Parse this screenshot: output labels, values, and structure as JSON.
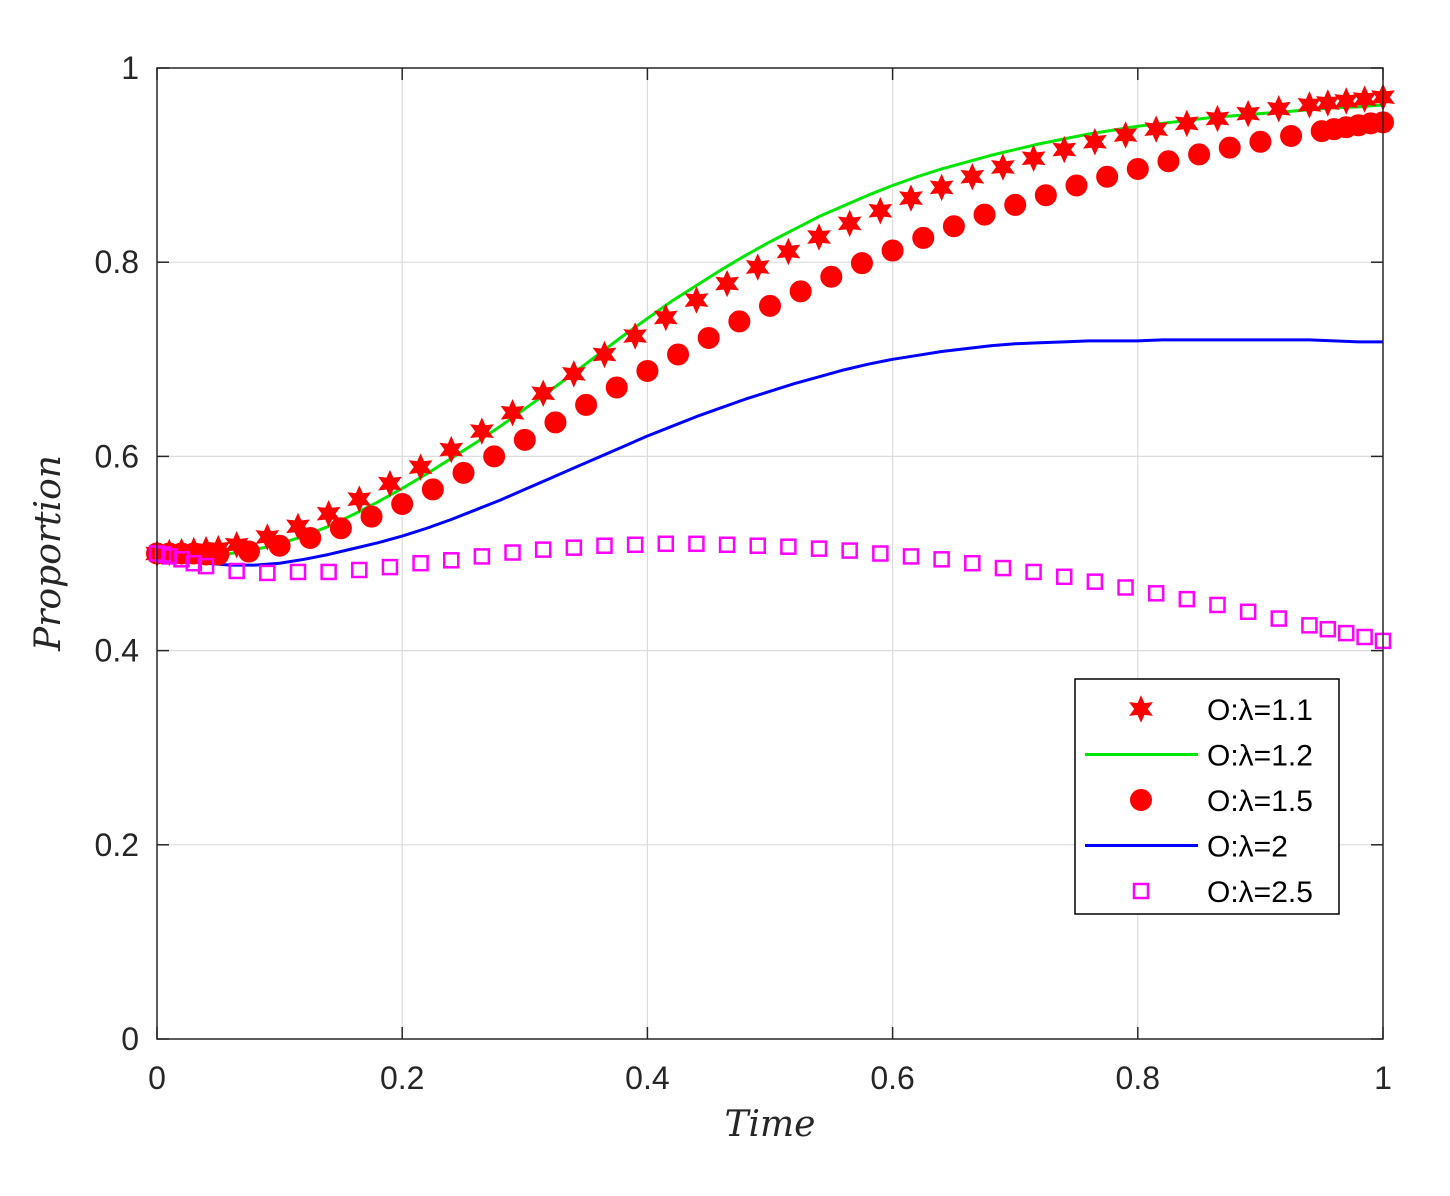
{
  "chart_data": {
    "type": "line",
    "title": "",
    "xlabel": "Time",
    "ylabel": "Proportion",
    "xlim": [
      0,
      1
    ],
    "ylim": [
      0,
      1
    ],
    "grid": true,
    "x_ticks": [
      0,
      0.2,
      0.4,
      0.6,
      0.8,
      1
    ],
    "x_tick_labels": [
      "0",
      "0.2",
      "0.4",
      "0.6",
      "0.8",
      "1"
    ],
    "y_ticks": [
      0,
      0.2,
      0.4,
      0.6,
      0.8,
      1
    ],
    "y_tick_labels": [
      "0",
      "0.2",
      "0.4",
      "0.6",
      "0.8",
      "1"
    ],
    "legend_position": "center-right",
    "series": [
      {
        "name": "O:λ=1.1",
        "color": "#ff0000",
        "style": "markers",
        "marker": "hexagram",
        "x": [
          0,
          0.01,
          0.02,
          0.03,
          0.04,
          0.05,
          0.065,
          0.09,
          0.115,
          0.14,
          0.165,
          0.19,
          0.215,
          0.24,
          0.265,
          0.29,
          0.315,
          0.34,
          0.365,
          0.39,
          0.415,
          0.44,
          0.465,
          0.49,
          0.515,
          0.54,
          0.565,
          0.59,
          0.615,
          0.64,
          0.665,
          0.69,
          0.715,
          0.74,
          0.765,
          0.79,
          0.815,
          0.84,
          0.865,
          0.89,
          0.915,
          0.94,
          0.955,
          0.97,
          0.985,
          1.0
        ],
        "y": [
          0.5,
          0.501,
          0.502,
          0.503,
          0.504,
          0.505,
          0.509,
          0.517,
          0.528,
          0.541,
          0.556,
          0.572,
          0.589,
          0.607,
          0.626,
          0.645,
          0.665,
          0.685,
          0.705,
          0.724,
          0.743,
          0.761,
          0.778,
          0.795,
          0.811,
          0.826,
          0.84,
          0.853,
          0.866,
          0.877,
          0.888,
          0.898,
          0.907,
          0.916,
          0.924,
          0.931,
          0.937,
          0.943,
          0.948,
          0.953,
          0.958,
          0.962,
          0.964,
          0.966,
          0.968,
          0.97
        ]
      },
      {
        "name": "O:λ=1.2",
        "color": "#00e600",
        "style": "line",
        "x": [
          0,
          0.02,
          0.04,
          0.06,
          0.08,
          0.1,
          0.12,
          0.14,
          0.16,
          0.18,
          0.2,
          0.22,
          0.24,
          0.26,
          0.28,
          0.3,
          0.32,
          0.34,
          0.36,
          0.38,
          0.4,
          0.42,
          0.44,
          0.46,
          0.48,
          0.5,
          0.52,
          0.54,
          0.56,
          0.58,
          0.6,
          0.62,
          0.64,
          0.66,
          0.68,
          0.7,
          0.72,
          0.74,
          0.76,
          0.78,
          0.8,
          0.82,
          0.84,
          0.86,
          0.88,
          0.9,
          0.92,
          0.94,
          0.96,
          0.98,
          1.0
        ],
        "y": [
          0.5,
          0.499,
          0.499,
          0.5,
          0.504,
          0.51,
          0.518,
          0.528,
          0.54,
          0.553,
          0.567,
          0.582,
          0.598,
          0.614,
          0.631,
          0.649,
          0.667,
          0.686,
          0.705,
          0.724,
          0.742,
          0.76,
          0.776,
          0.792,
          0.807,
          0.821,
          0.834,
          0.847,
          0.858,
          0.869,
          0.879,
          0.888,
          0.896,
          0.903,
          0.91,
          0.916,
          0.922,
          0.927,
          0.932,
          0.936,
          0.94,
          0.943,
          0.946,
          0.949,
          0.951,
          0.953,
          0.955,
          0.957,
          0.959,
          0.96,
          0.962
        ]
      },
      {
        "name": "O:λ=1.5",
        "color": "#ff0000",
        "style": "markers",
        "marker": "circle",
        "x": [
          0,
          0.01,
          0.02,
          0.03,
          0.04,
          0.05,
          0.075,
          0.1,
          0.125,
          0.15,
          0.175,
          0.2,
          0.225,
          0.25,
          0.275,
          0.3,
          0.325,
          0.35,
          0.375,
          0.4,
          0.425,
          0.45,
          0.475,
          0.5,
          0.525,
          0.55,
          0.575,
          0.6,
          0.625,
          0.65,
          0.675,
          0.7,
          0.725,
          0.75,
          0.775,
          0.8,
          0.825,
          0.85,
          0.875,
          0.9,
          0.925,
          0.95,
          0.96,
          0.97,
          0.98,
          0.99,
          1.0
        ],
        "y": [
          0.5,
          0.5,
          0.5,
          0.5,
          0.499,
          0.499,
          0.502,
          0.508,
          0.516,
          0.526,
          0.538,
          0.551,
          0.566,
          0.583,
          0.6,
          0.617,
          0.635,
          0.653,
          0.671,
          0.688,
          0.705,
          0.722,
          0.739,
          0.755,
          0.77,
          0.785,
          0.799,
          0.812,
          0.825,
          0.837,
          0.849,
          0.859,
          0.869,
          0.879,
          0.888,
          0.896,
          0.904,
          0.911,
          0.918,
          0.924,
          0.93,
          0.935,
          0.937,
          0.939,
          0.941,
          0.943,
          0.944
        ]
      },
      {
        "name": "O:λ=2",
        "color": "#0000ff",
        "style": "line",
        "x": [
          0,
          0.02,
          0.04,
          0.06,
          0.08,
          0.1,
          0.12,
          0.14,
          0.16,
          0.18,
          0.2,
          0.22,
          0.24,
          0.26,
          0.28,
          0.3,
          0.32,
          0.34,
          0.36,
          0.38,
          0.4,
          0.42,
          0.44,
          0.46,
          0.48,
          0.5,
          0.52,
          0.54,
          0.56,
          0.58,
          0.6,
          0.62,
          0.64,
          0.66,
          0.68,
          0.7,
          0.72,
          0.74,
          0.76,
          0.78,
          0.8,
          0.82,
          0.84,
          0.86,
          0.88,
          0.9,
          0.92,
          0.94,
          0.96,
          0.98,
          1.0
        ],
        "y": [
          0.5,
          0.495,
          0.49,
          0.488,
          0.488,
          0.49,
          0.494,
          0.499,
          0.505,
          0.511,
          0.518,
          0.526,
          0.535,
          0.545,
          0.555,
          0.566,
          0.577,
          0.588,
          0.599,
          0.61,
          0.621,
          0.631,
          0.641,
          0.65,
          0.659,
          0.667,
          0.675,
          0.682,
          0.689,
          0.695,
          0.7,
          0.704,
          0.708,
          0.711,
          0.714,
          0.716,
          0.717,
          0.718,
          0.719,
          0.719,
          0.719,
          0.72,
          0.72,
          0.72,
          0.72,
          0.72,
          0.72,
          0.72,
          0.719,
          0.718,
          0.718
        ]
      },
      {
        "name": "O:λ=2.5",
        "color": "#ff00ff",
        "style": "markers",
        "marker": "square",
        "x": [
          0,
          0.005,
          0.01,
          0.02,
          0.03,
          0.04,
          0.065,
          0.09,
          0.115,
          0.14,
          0.165,
          0.19,
          0.215,
          0.24,
          0.265,
          0.29,
          0.315,
          0.34,
          0.365,
          0.39,
          0.415,
          0.44,
          0.465,
          0.49,
          0.515,
          0.54,
          0.565,
          0.59,
          0.615,
          0.64,
          0.665,
          0.69,
          0.715,
          0.74,
          0.765,
          0.79,
          0.815,
          0.84,
          0.865,
          0.89,
          0.915,
          0.94,
          0.955,
          0.97,
          0.985,
          1.0
        ],
        "y": [
          0.5,
          0.499,
          0.497,
          0.494,
          0.49,
          0.487,
          0.482,
          0.48,
          0.481,
          0.481,
          0.483,
          0.486,
          0.49,
          0.493,
          0.497,
          0.501,
          0.504,
          0.506,
          0.508,
          0.509,
          0.51,
          0.51,
          0.509,
          0.508,
          0.507,
          0.505,
          0.503,
          0.5,
          0.497,
          0.494,
          0.49,
          0.485,
          0.481,
          0.476,
          0.471,
          0.465,
          0.459,
          0.453,
          0.447,
          0.44,
          0.433,
          0.426,
          0.422,
          0.418,
          0.414,
          0.41
        ]
      }
    ]
  }
}
